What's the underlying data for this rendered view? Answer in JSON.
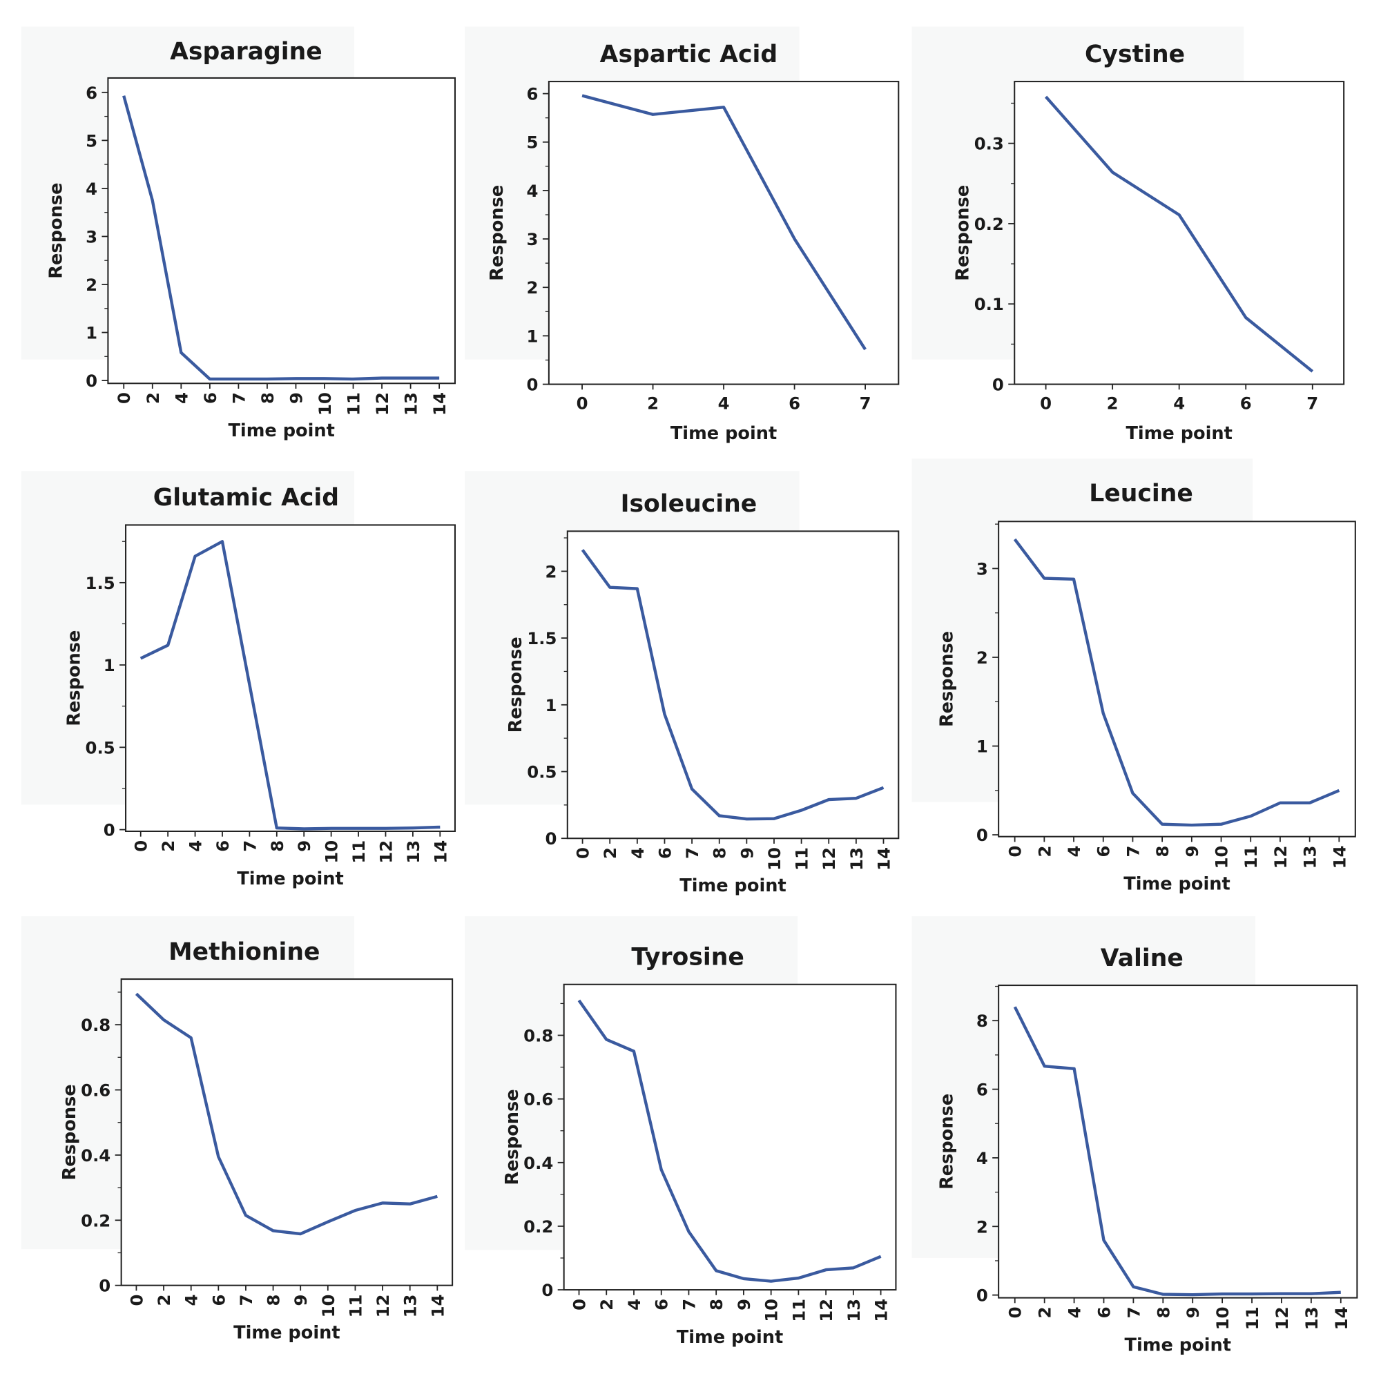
{
  "chart_data": [
    {
      "type": "line",
      "title": "Asparagine",
      "xlabel": "Time point",
      "ylabel": "Response",
      "categories": [
        "0",
        "2",
        "4",
        "6",
        "7",
        "8",
        "9",
        "10",
        "11",
        "12",
        "13",
        "14"
      ],
      "values": [
        5.93,
        3.75,
        0.58,
        0.03,
        0.03,
        0.03,
        0.04,
        0.04,
        0.03,
        0.05,
        0.05,
        0.05
      ],
      "ylim": [
        -0.06,
        6.3
      ],
      "yticks": [
        0,
        1,
        2,
        3,
        4,
        5,
        6
      ],
      "grid": false,
      "color": "#3a5a9f"
    },
    {
      "type": "line",
      "title": "Aspartic Acid",
      "xlabel": "Time point",
      "ylabel": "Response",
      "categories": [
        "0",
        "2",
        "4",
        "6",
        "7"
      ],
      "values": [
        5.96,
        5.57,
        5.72,
        3.0,
        0.72
      ],
      "ylim": [
        0,
        6.25
      ],
      "yticks": [
        0,
        1,
        2,
        3,
        4,
        5,
        6
      ],
      "grid": false,
      "color": "#3a5a9f"
    },
    {
      "type": "line",
      "title": "Cystine",
      "xlabel": "Time point",
      "ylabel": "Response",
      "categories": [
        "0",
        "2",
        "4",
        "6",
        "7"
      ],
      "values": [
        0.358,
        0.264,
        0.211,
        0.083,
        0.016
      ],
      "ylim": [
        0,
        0.377
      ],
      "yticks": [
        0,
        0.1,
        0.2,
        0.3
      ],
      "grid": false,
      "color": "#3a5a9f"
    },
    {
      "type": "line",
      "title": "Glutamic Acid",
      "xlabel": "Time point",
      "ylabel": "Response",
      "categories": [
        "0",
        "2",
        "4",
        "6",
        "7",
        "8",
        "9",
        "10",
        "11",
        "12",
        "13",
        "14"
      ],
      "values": [
        1.04,
        1.12,
        1.66,
        1.75,
        0.88,
        0.01,
        0.005,
        0.008,
        0.008,
        0.008,
        0.01,
        0.015
      ],
      "ylim": [
        -0.01,
        1.85
      ],
      "yticks": [
        0,
        0.5,
        1.0,
        1.5
      ],
      "grid": false,
      "color": "#3a5a9f"
    },
    {
      "type": "line",
      "title": "Isoleucine",
      "xlabel": "Time point",
      "ylabel": "Response",
      "categories": [
        "0",
        "2",
        "4",
        "6",
        "7",
        "8",
        "9",
        "10",
        "11",
        "12",
        "13",
        "14"
      ],
      "values": [
        2.16,
        1.88,
        1.87,
        0.93,
        0.37,
        0.17,
        0.145,
        0.148,
        0.21,
        0.29,
        0.3,
        0.38
      ],
      "ylim": [
        0,
        2.3
      ],
      "yticks": [
        0,
        0.5,
        1.0,
        1.5,
        2.0
      ],
      "grid": false,
      "color": "#3a5a9f"
    },
    {
      "type": "line",
      "title": "Leucine",
      "xlabel": "Time point",
      "ylabel": "Response",
      "categories": [
        "0",
        "2",
        "4",
        "6",
        "7",
        "8",
        "9",
        "10",
        "11",
        "12",
        "13",
        "14"
      ],
      "values": [
        3.33,
        2.89,
        2.88,
        1.37,
        0.47,
        0.12,
        0.11,
        0.12,
        0.21,
        0.36,
        0.36,
        0.5
      ],
      "ylim": [
        -0.02,
        3.53
      ],
      "yticks": [
        0,
        1,
        2,
        3
      ],
      "grid": false,
      "color": "#3a5a9f"
    },
    {
      "type": "line",
      "title": "Methionine",
      "xlabel": "Time point",
      "ylabel": "Response",
      "categories": [
        "0",
        "2",
        "4",
        "6",
        "7",
        "8",
        "9",
        "10",
        "11",
        "12",
        "13",
        "14"
      ],
      "values": [
        0.895,
        0.815,
        0.76,
        0.395,
        0.215,
        0.168,
        0.158,
        0.195,
        0.23,
        0.253,
        0.25,
        0.273
      ],
      "ylim": [
        0,
        0.94
      ],
      "yticks": [
        0,
        0.2,
        0.4,
        0.6,
        0.8
      ],
      "grid": false,
      "color": "#3a5a9f"
    },
    {
      "type": "line",
      "title": "Tyrosine",
      "xlabel": "Time point",
      "ylabel": "Response",
      "categories": [
        "0",
        "2",
        "4",
        "6",
        "7",
        "8",
        "9",
        "10",
        "11",
        "12",
        "13",
        "14"
      ],
      "values": [
        0.91,
        0.787,
        0.75,
        0.378,
        0.183,
        0.06,
        0.035,
        0.027,
        0.037,
        0.063,
        0.069,
        0.105
      ],
      "ylim": [
        0,
        0.96
      ],
      "yticks": [
        0,
        0.2,
        0.4,
        0.6,
        0.8
      ],
      "grid": false,
      "color": "#3a5a9f"
    },
    {
      "type": "line",
      "title": "Valine",
      "xlabel": "Time point",
      "ylabel": "Response",
      "categories": [
        "0",
        "2",
        "4",
        "6",
        "7",
        "8",
        "9",
        "10",
        "11",
        "12",
        "13",
        "14"
      ],
      "values": [
        8.4,
        6.67,
        6.6,
        1.6,
        0.24,
        0.02,
        0.01,
        0.03,
        0.03,
        0.04,
        0.04,
        0.08
      ],
      "ylim": [
        -0.08,
        9.03
      ],
      "yticks": [
        0,
        2,
        4,
        6,
        8
      ],
      "grid": false,
      "color": "#3a5a9f"
    }
  ]
}
